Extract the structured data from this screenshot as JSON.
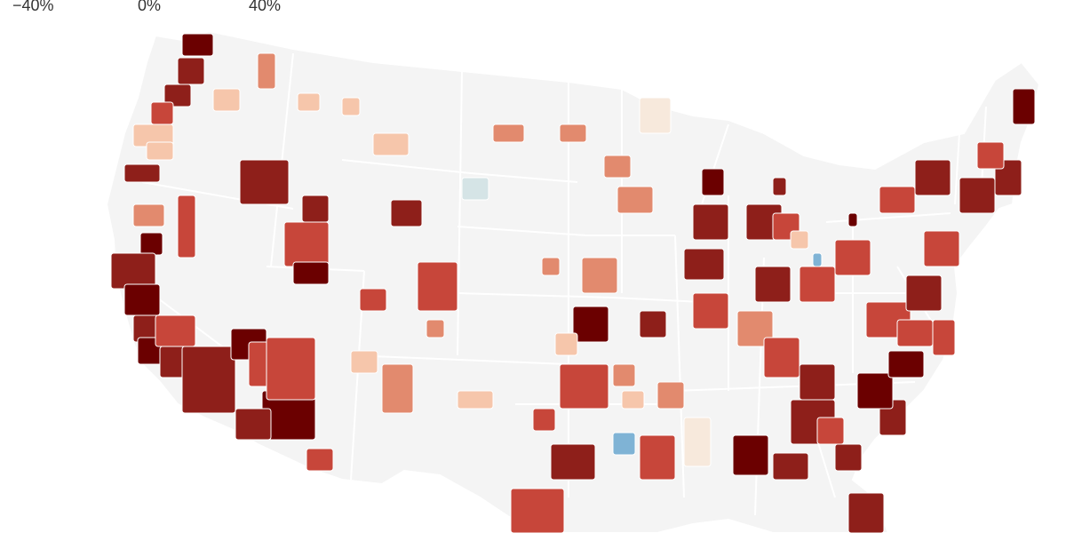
{
  "legend": {
    "ticks": [
      "−40%",
      "0%",
      "40%"
    ]
  },
  "colors": {
    "land": "#f4f4f4",
    "border": "#ffffff",
    "background": "#ffffff",
    "scale_neg_strong": "#7fb3d5",
    "scale_neg_light": "#d5e4e6",
    "scale_neutral": "#f7e9dc",
    "scale_pos_1": "#f6c6ab",
    "scale_pos_2": "#e28a6e",
    "scale_pos_3": "#c7463a",
    "scale_pos_4": "#8e1f1a",
    "scale_pos_5": "#6b0000"
  }
}
